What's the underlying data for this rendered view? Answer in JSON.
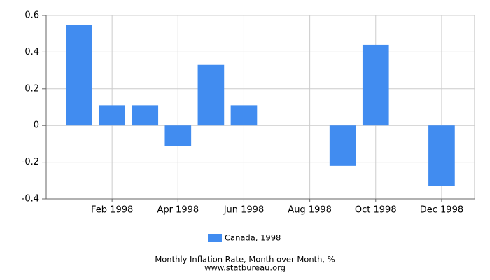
{
  "chart_data": {
    "type": "bar",
    "categories": [
      null,
      "Feb 1998",
      null,
      "Apr 1998",
      null,
      "Jun 1998",
      null,
      "Aug 1998",
      null,
      "Oct 1998",
      null,
      "Dec 1998"
    ],
    "series": [
      {
        "name": "Canada, 1998",
        "color": "#418cf0",
        "values": [
          0.55,
          0.11,
          0.11,
          -0.11,
          0.33,
          0.11,
          0,
          0,
          -0.22,
          0.44,
          0,
          -0.33
        ]
      }
    ],
    "ylim": [
      -0.4,
      0.6
    ],
    "yticks": [
      -0.4,
      -0.2,
      0,
      0.2,
      0.4,
      0.6
    ],
    "grid": true,
    "legend": "bottom",
    "caption": "Monthly Inflation Rate, Month over Month, %",
    "source": "www.statbureau.org"
  }
}
